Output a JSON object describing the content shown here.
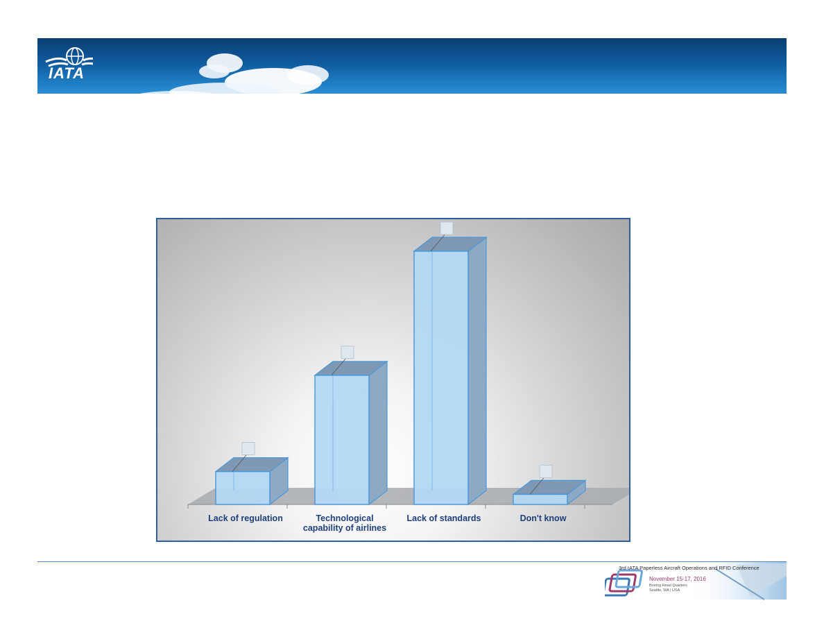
{
  "header": {
    "logo_text": "IATA"
  },
  "chart_data": {
    "type": "bar",
    "categories": [
      "Lack of regulation",
      "Technological capability of airlines",
      "Lack of standards",
      "Don't know"
    ],
    "category_lines": [
      [
        "Lack of regulation"
      ],
      [
        "Technological",
        "capability of airlines"
      ],
      [
        "Lack of standards"
      ],
      [
        "Don't know"
      ]
    ],
    "values": [
      13,
      51,
      100,
      4
    ],
    "title": "",
    "xlabel": "",
    "ylabel": "",
    "ylim": [
      0,
      100
    ],
    "grid": false,
    "three_d": true,
    "bar_color": "#b4d9f5",
    "bar_edge_color": "#4a97d8",
    "side_color": "#8ea9c3"
  },
  "footer": {
    "conference_title": "3rd IATA Paperless Aircraft Operations and RFID Conference",
    "conference_date": "November 15-17, 2016",
    "venue_line1": "Boeing Head Quarters",
    "venue_line2": "Seattle, WA | USA"
  }
}
